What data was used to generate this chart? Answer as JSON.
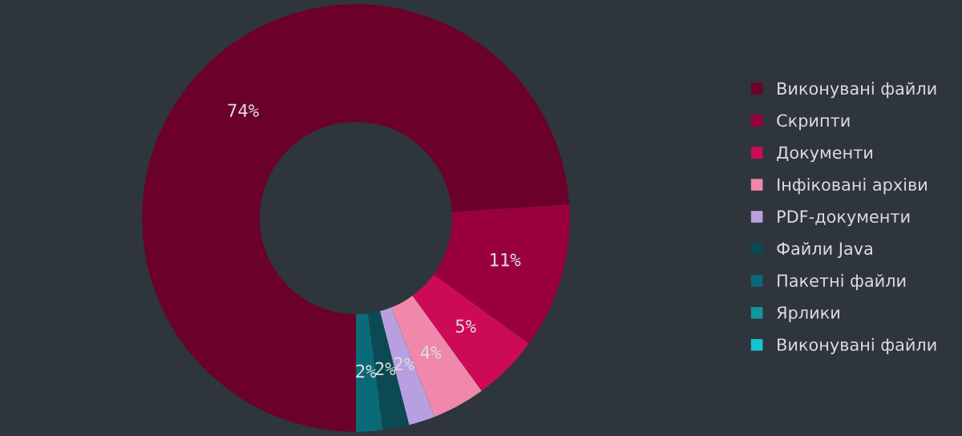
{
  "chart_data": {
    "type": "donut",
    "categories": [
      "Виконувані файли",
      "Скрипти",
      "Документи",
      "Інфіковані архіви",
      "PDF-документи",
      "Файли Java",
      "Пакетні файли",
      "Ярлики",
      "Виконувані файли"
    ],
    "values": [
      74,
      11,
      5,
      4,
      2,
      2,
      2,
      0,
      0
    ],
    "value_labels": [
      "74%",
      "11%",
      "5%",
      "4%",
      "2%",
      "2%",
      "2%",
      null,
      null
    ],
    "colors": [
      "#6b0028",
      "#9a0040",
      "#cc0a55",
      "#f088ac",
      "#b8a0e0",
      "#0b4a52",
      "#0b6a78",
      "#11959e",
      "#14c4cf"
    ],
    "legend": "right"
  }
}
